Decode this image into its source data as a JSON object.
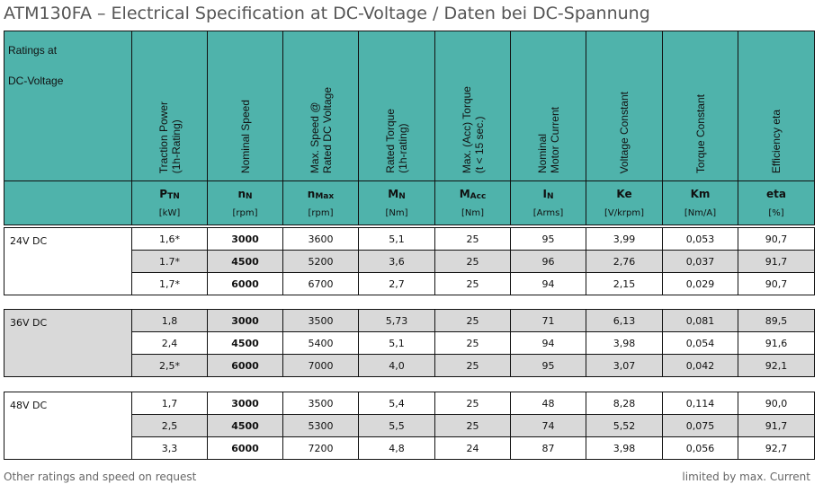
{
  "title": "ATM130FA – Electrical Specification at DC-Voltage / Daten bei DC-Spannung",
  "header": {
    "first": [
      "Ratings at",
      "DC-Voltage"
    ],
    "columns": [
      {
        "label": [
          "Traction Power",
          "(1h-Rating)"
        ],
        "sym": "P",
        "sub": "TN",
        "unit": "[kW]"
      },
      {
        "label": [
          "Nominal Speed"
        ],
        "sym": "n",
        "sub": "N",
        "unit": "[rpm]"
      },
      {
        "label": [
          "Max. Speed @",
          "Rated DC Voltage"
        ],
        "sym": "n",
        "sub": "Max",
        "unit": "[rpm]"
      },
      {
        "label": [
          "Rated Torque",
          "(1h-rating)"
        ],
        "sym": "M",
        "sub": "N",
        "unit": "[Nm]"
      },
      {
        "label": [
          "Max. (Acc) Torque",
          "(t < 15 sec.)"
        ],
        "sym": "M",
        "sub": "Acc",
        "unit": "[Nm]"
      },
      {
        "label": [
          "Nominal",
          "Motor Current"
        ],
        "sym": "I",
        "sub": "N",
        "unit": "[Arms]"
      },
      {
        "label": [
          "Voltage Constant"
        ],
        "sym": "Ke",
        "sub": "",
        "unit": "[V/krpm]"
      },
      {
        "label": [
          "Torque Constant"
        ],
        "sym": "Km",
        "sub": "",
        "unit": "[Nm/A]"
      },
      {
        "label": [
          "Efficiency eta"
        ],
        "sym": "eta",
        "sub": "",
        "unit": "[%]"
      }
    ]
  },
  "groups": [
    {
      "label": "24V DC",
      "labelGray": false,
      "rows": [
        {
          "gray": false,
          "cells": [
            "1,6*",
            "3000",
            "3600",
            "5,1",
            "25",
            "95",
            "3,99",
            "0,053",
            "90,7"
          ]
        },
        {
          "gray": true,
          "cells": [
            "1.7*",
            "4500",
            "5200",
            "3,6",
            "25",
            "96",
            "2,76",
            "0,037",
            "91,7"
          ]
        },
        {
          "gray": false,
          "cells": [
            "1,7*",
            "6000",
            "6700",
            "2,7",
            "25",
            "94",
            "2,15",
            "0,029",
            "90,7"
          ]
        }
      ]
    },
    {
      "label": "36V DC",
      "labelGray": true,
      "rows": [
        {
          "gray": true,
          "cells": [
            "1,8",
            "3000",
            "3500",
            "5,73",
            "25",
            "71",
            "6,13",
            "0,081",
            "89,5"
          ]
        },
        {
          "gray": false,
          "cells": [
            "2,4",
            "4500",
            "5400",
            "5,1",
            "25",
            "94",
            "3,98",
            "0,054",
            "91,6"
          ]
        },
        {
          "gray": true,
          "cells": [
            "2,5*",
            "6000",
            "7000",
            "4,0",
            "25",
            "95",
            "3,07",
            "0,042",
            "92,1"
          ]
        }
      ]
    },
    {
      "label": "48V DC",
      "labelGray": false,
      "rows": [
        {
          "gray": false,
          "cells": [
            "1,7",
            "3000",
            "3500",
            "5,4",
            "25",
            "48",
            "8,28",
            "0,114",
            "90,0"
          ]
        },
        {
          "gray": true,
          "cells": [
            "2,5",
            "4500",
            "5300",
            "5,5",
            "25",
            "74",
            "5,52",
            "0,075",
            "91,7"
          ]
        },
        {
          "gray": false,
          "cells": [
            "3,3",
            "6000",
            "7200",
            "4,8",
            "24",
            "87",
            "3,98",
            "0,056",
            "92,7"
          ]
        }
      ]
    }
  ],
  "footer": {
    "left": "Other ratings and speed on request",
    "right": "limited by max. Current"
  }
}
